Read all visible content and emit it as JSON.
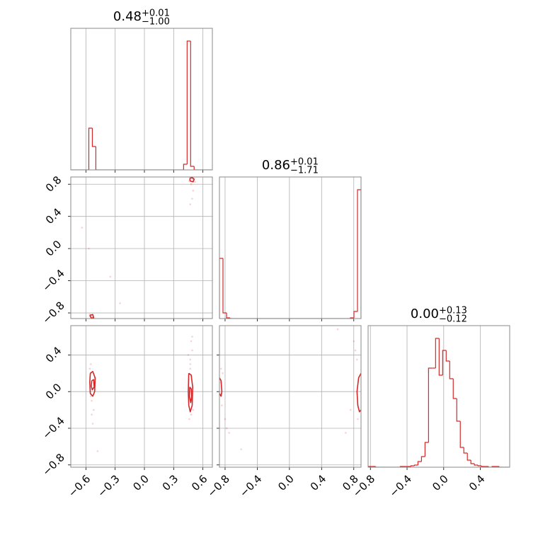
{
  "chart_data": [
    {
      "type": "histogram",
      "title": {
        "value": "0.48",
        "upper": "+0.01",
        "lower": "−1.00"
      },
      "color": "#d62728",
      "grid": true,
      "xlim": [
        -0.755,
        0.697
      ],
      "ylim": [
        0,
        200
      ],
      "xticks": [
        -0.6,
        -0.3,
        0,
        0.3,
        0.6
      ],
      "bins": [
        -0.75,
        -0.714,
        -0.678,
        -0.642,
        -0.606,
        -0.57,
        -0.534,
        -0.498,
        -0.462,
        -0.426,
        -0.39,
        -0.354,
        -0.318,
        -0.282,
        -0.246,
        -0.21,
        -0.174,
        -0.138,
        -0.102,
        -0.066,
        -0.03,
        0.006,
        0.042,
        0.078,
        0.114,
        0.15,
        0.186,
        0.222,
        0.258,
        0.294,
        0.33,
        0.366,
        0.402,
        0.438,
        0.474,
        0.51,
        0.546,
        0.582,
        0.618,
        0.654,
        0.69
      ],
      "counts": [
        0,
        0,
        0,
        0,
        0,
        59,
        33,
        0,
        0,
        0,
        0,
        0,
        0,
        0,
        0,
        0,
        0,
        0,
        0,
        0,
        0,
        0,
        0,
        0,
        0,
        0,
        0,
        0,
        0,
        0,
        0,
        0,
        8,
        182,
        5,
        0,
        0,
        0,
        0,
        0
      ]
    },
    {
      "type": "scatter",
      "color": "#d62728",
      "grid": true,
      "xlim": [
        -0.755,
        0.697
      ],
      "ylim": [
        -0.87,
        0.89
      ],
      "xticks": [
        -0.6,
        -0.3,
        0,
        0.3,
        0.6
      ],
      "yticks": [
        {
          "value": -0.8,
          "label": "−0.8"
        },
        {
          "value": -0.4,
          "label": "−0.4"
        },
        {
          "value": 0,
          "label": "0.0"
        },
        0.4,
        0.8
      ],
      "x": [
        -0.64,
        -0.57,
        -0.35,
        -0.25,
        -0.56,
        -0.53,
        -0.54,
        0.47,
        0.49,
        0.5,
        0.48,
        0.46,
        0.51,
        0.52,
        0.47,
        0.49
      ],
      "y": [
        0.26,
        0.0,
        -0.35,
        -0.68,
        -0.82,
        -0.86,
        -0.85,
        0.55,
        0.62,
        0.72,
        0.8,
        0.84,
        0.87,
        0.83,
        0.88,
        0.86
      ],
      "contours": [
        {
          "x": [
            0.465,
            0.49,
            0.51,
            0.5,
            0.47,
            0.465
          ],
          "y": [
            0.87,
            0.885,
            0.86,
            0.83,
            0.84,
            0.87
          ]
        },
        {
          "x": [
            -0.56,
            -0.53,
            -0.52,
            -0.545,
            -0.56
          ],
          "y": [
            -0.83,
            -0.82,
            -0.86,
            -0.865,
            -0.83
          ]
        }
      ]
    },
    {
      "type": "histogram",
      "title": {
        "value": "0.86",
        "upper": "+0.01",
        "lower": "−1.71"
      },
      "color": "#d62728",
      "grid": true,
      "xlim": [
        -0.87,
        0.89
      ],
      "ylim": [
        0,
        200
      ],
      "xticks": [
        -0.8,
        -0.4,
        0,
        0.4,
        0.8
      ],
      "bins": [
        -0.87,
        -0.826,
        -0.782,
        -0.738,
        -0.694,
        -0.65,
        -0.606,
        -0.562,
        -0.518,
        -0.474,
        -0.43,
        -0.386,
        -0.342,
        -0.298,
        -0.254,
        -0.21,
        -0.166,
        -0.122,
        -0.078,
        -0.034,
        0.01,
        0.054,
        0.098,
        0.142,
        0.186,
        0.23,
        0.274,
        0.318,
        0.362,
        0.406,
        0.45,
        0.494,
        0.538,
        0.582,
        0.626,
        0.67,
        0.714,
        0.758,
        0.802,
        0.846,
        0.89
      ],
      "counts": [
        85,
        8,
        1,
        0,
        0,
        0,
        0,
        0,
        0,
        0,
        0,
        0,
        0,
        0,
        0,
        0,
        0,
        0,
        0,
        0,
        0,
        0,
        0,
        0,
        0,
        0,
        0,
        0,
        0,
        0,
        0,
        0,
        0,
        0,
        0,
        0,
        0,
        1,
        10,
        182
      ]
    },
    {
      "type": "scatter",
      "color": "#d62728",
      "grid": true,
      "xlim": [
        -0.755,
        0.697
      ],
      "ylim": [
        -0.825,
        0.72
      ],
      "xticks": [
        {
          "value": -0.6,
          "label": "−0.6"
        },
        {
          "value": -0.3,
          "label": "−0.3"
        },
        {
          "value": 0,
          "label": "0.0"
        },
        0.3,
        0.6
      ],
      "yticks": [
        {
          "value": -0.8,
          "label": "−0.8"
        },
        {
          "value": -0.4,
          "label": "−0.4"
        },
        {
          "value": 0,
          "label": "0.0"
        },
        0.4
      ],
      "x": [
        -0.56,
        -0.55,
        -0.54,
        -0.52,
        -0.53,
        -0.55,
        -0.51,
        -0.54,
        -0.55,
        -0.48,
        0.47,
        0.48,
        0.49,
        0.46,
        0.5,
        0.47,
        0.48,
        0.49,
        0.47,
        0.45
      ],
      "y": [
        0.25,
        0.2,
        -0.1,
        -0.2,
        -0.35,
        -0.05,
        0.15,
        -0.25,
        0.3,
        -0.65,
        0.3,
        0.55,
        0.45,
        -0.3,
        -0.2,
        0.25,
        -0.25,
        0.6,
        0.35,
        0.4
      ],
      "contours": [
        {
          "x": [
            -0.555,
            -0.53,
            -0.505,
            -0.51,
            -0.53,
            -0.555,
            -0.56,
            -0.555
          ],
          "y": [
            0.2,
            0.22,
            0.15,
            0.0,
            -0.05,
            -0.02,
            0.1,
            0.2
          ]
        },
        {
          "x": [
            -0.54,
            -0.52,
            -0.515,
            -0.535,
            -0.545,
            -0.54
          ],
          "y": [
            0.12,
            0.13,
            0.05,
            0.02,
            0.06,
            0.12
          ]
        },
        {
          "x": [
            0.455,
            0.48,
            0.495,
            0.49,
            0.47,
            0.455,
            0.45,
            0.455
          ],
          "y": [
            0.2,
            0.18,
            0.05,
            -0.15,
            -0.22,
            -0.15,
            0.0,
            0.2
          ]
        },
        {
          "x": [
            0.465,
            0.48,
            0.485,
            0.475,
            0.462,
            0.465
          ],
          "y": [
            0.05,
            0.03,
            -0.06,
            -0.12,
            -0.05,
            0.05
          ]
        }
      ]
    },
    {
      "type": "scatter",
      "color": "#d62728",
      "grid": true,
      "xlim": [
        -0.87,
        0.89
      ],
      "ylim": [
        -0.825,
        0.72
      ],
      "xticks": [
        {
          "value": -0.8,
          "label": "−0.8"
        },
        {
          "value": -0.4,
          "label": "−0.4"
        },
        {
          "value": 0,
          "label": "0.0"
        },
        0.4,
        0.8
      ],
      "yticks": [
        -0.8,
        -0.4,
        0,
        0.4
      ],
      "x": [
        -0.85,
        -0.84,
        -0.8,
        -0.78,
        -0.75,
        -0.85,
        -0.83,
        -0.6,
        0.84,
        0.82,
        0.8,
        0.85,
        0.76,
        0.7,
        0.6
      ],
      "y": [
        0.1,
        -0.15,
        -0.3,
        -0.4,
        -0.45,
        0.25,
        0.2,
        -0.63,
        0.35,
        0.45,
        0.55,
        -0.3,
        -0.2,
        -0.45,
        0.68
      ],
      "contours": [
        {
          "x": [
            -0.87,
            -0.85,
            -0.84,
            -0.85,
            -0.87
          ],
          "y": [
            0.15,
            0.12,
            0.0,
            -0.05,
            -0.02
          ]
        },
        {
          "x": [
            0.89,
            0.86,
            0.84,
            0.85,
            0.87,
            0.89
          ],
          "y": [
            0.2,
            0.15,
            0.0,
            -0.15,
            -0.22,
            -0.2
          ]
        }
      ]
    },
    {
      "type": "histogram",
      "title": {
        "value": "0.00",
        "upper": "+0.13",
        "lower": "−0.12"
      },
      "color": "#d62728",
      "grid": true,
      "xlim": [
        -0.825,
        0.72
      ],
      "ylim": [
        0,
        200
      ],
      "xticks": [
        {
          "value": -0.8,
          "label": "−0.8"
        },
        {
          "value": -0.4,
          "label": "−0.4"
        },
        {
          "value": 0,
          "label": "0.0"
        },
        0.4
      ],
      "bins": [
        -0.82,
        -0.7815,
        -0.743,
        -0.7045,
        -0.666,
        -0.6275,
        -0.589,
        -0.5505,
        -0.512,
        -0.4735,
        -0.435,
        -0.3965,
        -0.358,
        -0.3195,
        -0.281,
        -0.2425,
        -0.204,
        -0.1655,
        -0.127,
        -0.0885,
        -0.05,
        -0.0115,
        0.027,
        0.0655,
        0.104,
        0.1425,
        0.181,
        0.2195,
        0.258,
        0.2965,
        0.335,
        0.3735,
        0.412,
        0.4505,
        0.489,
        0.5275,
        0.566,
        0.6045,
        0.643,
        0.6815,
        0.72
      ],
      "counts": [
        1,
        1,
        0,
        0,
        0,
        0,
        0,
        0,
        0,
        1,
        1,
        1,
        2,
        3,
        8,
        15,
        35,
        140,
        140,
        182,
        130,
        165,
        150,
        125,
        97,
        65,
        28,
        20,
        10,
        5,
        3,
        2,
        1,
        1,
        0,
        1,
        1,
        0,
        0,
        0
      ]
    }
  ]
}
